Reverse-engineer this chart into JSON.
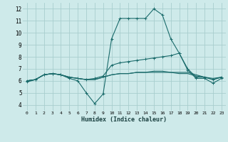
{
  "xlabel": "Humidex (Indice chaleur)",
  "bg_color": "#ceeaea",
  "grid_color": "#a8cece",
  "line_color": "#1a6b6b",
  "x_values": [
    0,
    1,
    2,
    3,
    4,
    5,
    6,
    7,
    8,
    9,
    10,
    11,
    12,
    13,
    14,
    15,
    16,
    17,
    18,
    19,
    20,
    21,
    22,
    23
  ],
  "line1": [
    5.9,
    6.1,
    6.5,
    6.6,
    6.5,
    6.2,
    6.0,
    5.0,
    4.1,
    4.9,
    9.5,
    11.2,
    11.2,
    11.2,
    11.2,
    12.0,
    11.5,
    9.5,
    8.3,
    6.9,
    6.2,
    6.2,
    5.8,
    6.2
  ],
  "line2": [
    6.0,
    6.1,
    6.5,
    6.6,
    6.5,
    6.3,
    6.2,
    6.1,
    6.2,
    6.4,
    7.3,
    7.5,
    7.6,
    7.7,
    7.8,
    7.9,
    8.0,
    8.1,
    8.3,
    7.0,
    6.3,
    6.3,
    6.1,
    6.3
  ],
  "line3": [
    6.0,
    6.1,
    6.5,
    6.6,
    6.5,
    6.3,
    6.2,
    6.1,
    6.1,
    6.3,
    6.5,
    6.6,
    6.6,
    6.7,
    6.7,
    6.7,
    6.7,
    6.7,
    6.7,
    6.7,
    6.5,
    6.3,
    6.1,
    6.3
  ],
  "line4": [
    6.0,
    6.1,
    6.5,
    6.6,
    6.5,
    6.3,
    6.2,
    6.1,
    6.1,
    6.3,
    6.5,
    6.6,
    6.6,
    6.7,
    6.7,
    6.8,
    6.8,
    6.7,
    6.6,
    6.6,
    6.4,
    6.3,
    6.2,
    6.3
  ],
  "ylim": [
    3.5,
    12.5
  ],
  "yticks": [
    4,
    5,
    6,
    7,
    8,
    9,
    10,
    11,
    12
  ],
  "xlim": [
    -0.5,
    23.5
  ],
  "xticks": [
    0,
    1,
    2,
    3,
    4,
    5,
    6,
    7,
    8,
    9,
    10,
    11,
    12,
    13,
    14,
    15,
    16,
    17,
    18,
    19,
    20,
    21,
    22,
    23
  ],
  "xtick_labels": [
    "0",
    "1",
    "2",
    "3",
    "4",
    "5",
    "6",
    "7",
    "8",
    "9",
    "10",
    "11",
    "12",
    "13",
    "14",
    "15",
    "16",
    "17",
    "18",
    "19",
    "20",
    "21",
    "22",
    "23"
  ]
}
